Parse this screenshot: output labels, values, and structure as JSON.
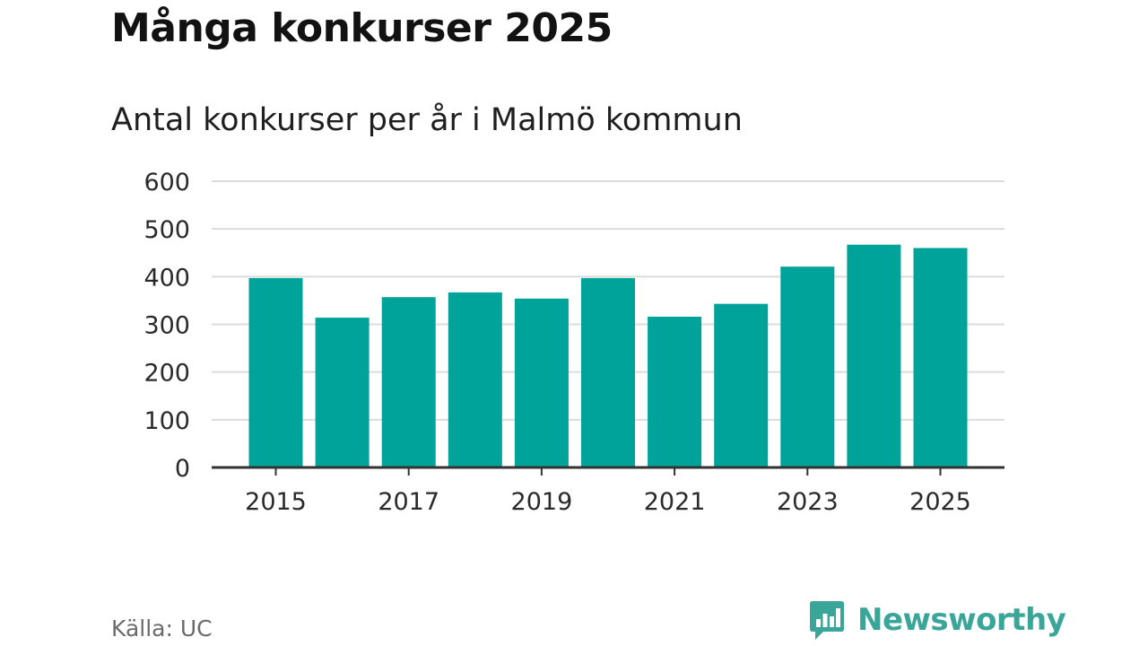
{
  "header": {
    "title": "Många konkurser 2025",
    "subtitle": "Antal konkurser per år i Malmö kommun"
  },
  "footer": {
    "source": "Källa: UC",
    "brand": "Newsworthy"
  },
  "colors": {
    "bar": "#00a39a",
    "brand": "#3aa69a",
    "grid": "#dcdcdc",
    "axis": "#333333"
  },
  "chart_data": {
    "type": "bar",
    "title": "Antal konkurser per år i Malmö kommun",
    "xlabel": "",
    "ylabel": "",
    "categories": [
      "2015",
      "2016",
      "2017",
      "2018",
      "2019",
      "2020",
      "2021",
      "2022",
      "2023",
      "2024",
      "2025"
    ],
    "values": [
      397,
      314,
      357,
      367,
      354,
      397,
      316,
      343,
      421,
      467,
      460
    ],
    "ylim": [
      0,
      600
    ],
    "yticks": [
      "0",
      "100",
      "200",
      "300",
      "400",
      "500",
      "600"
    ],
    "xtick_labels": [
      "2015",
      "2017",
      "2019",
      "2021",
      "2023",
      "2025"
    ],
    "grid": true
  }
}
